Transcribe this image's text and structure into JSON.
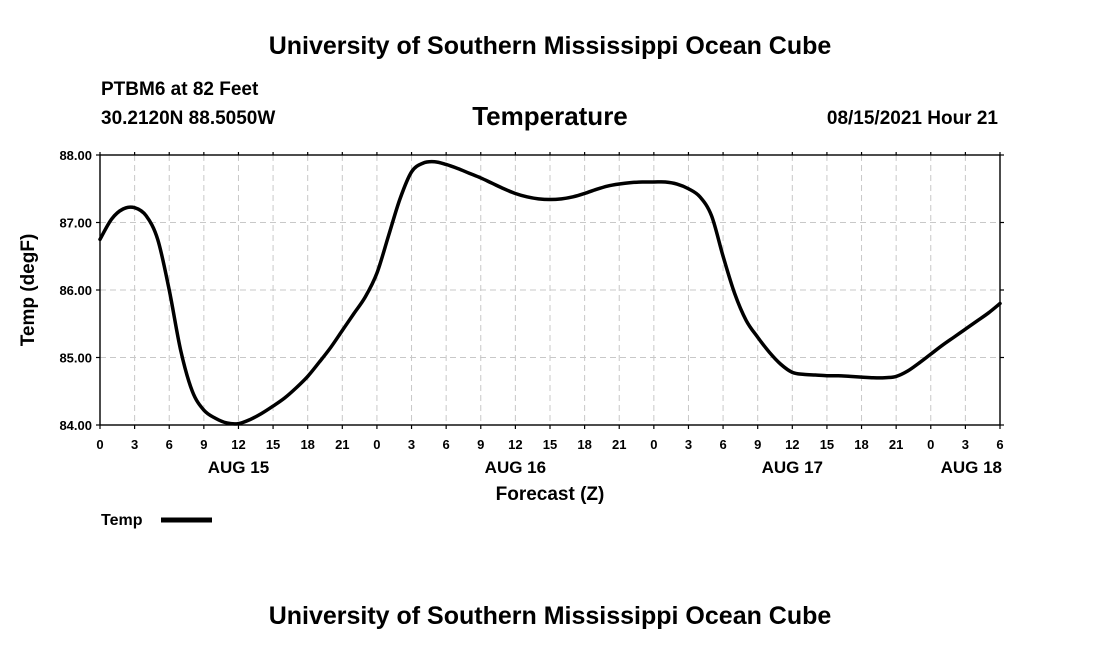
{
  "header": {
    "top_title": "University of Southern Mississippi Ocean Cube",
    "station": "PTBM6 at 82 Feet",
    "coords": "30.2120N  88.5050W",
    "variable": "Temperature",
    "datetime": "08/15/2021 Hour 21"
  },
  "footer": {
    "bottom_title": "University of Southern Mississippi Ocean Cube"
  },
  "legend": {
    "label": "Temp"
  },
  "chart_data": {
    "type": "line",
    "title": "Temperature",
    "xlabel": "Forecast (Z)",
    "ylabel": "Temp (degF)",
    "xlim": [
      0,
      78
    ],
    "ylim": [
      84.0,
      88.0
    ],
    "x_ticks": [
      0,
      3,
      6,
      9,
      12,
      15,
      18,
      21,
      24,
      27,
      30,
      33,
      36,
      39,
      42,
      45,
      48,
      51,
      54,
      57,
      60,
      63,
      66,
      69,
      72,
      75,
      78
    ],
    "x_tick_labels": [
      "0",
      "3",
      "6",
      "9",
      "12",
      "15",
      "18",
      "21",
      "0",
      "3",
      "6",
      "9",
      "12",
      "15",
      "18",
      "21",
      "0",
      "3",
      "6",
      "9",
      "12",
      "15",
      "18",
      "21",
      "0",
      "3",
      "6"
    ],
    "y_ticks": [
      84.0,
      85.0,
      86.0,
      87.0,
      88.0
    ],
    "y_tick_labels": [
      "84.00",
      "85.00",
      "86.00",
      "87.00",
      "88.00"
    ],
    "date_labels": [
      {
        "x": 12,
        "label": "AUG 15"
      },
      {
        "x": 36,
        "label": "AUG 16"
      },
      {
        "x": 60,
        "label": "AUG 17"
      },
      {
        "x": 78,
        "label": "AUG 18"
      }
    ],
    "grid": true,
    "legend_position": "bottom-left",
    "series": [
      {
        "name": "Temp",
        "color": "#000000",
        "x": [
          0,
          1,
          2,
          3,
          4,
          5,
          6,
          7,
          8,
          9,
          10,
          11,
          12,
          13,
          14,
          15,
          16,
          17,
          18,
          19,
          20,
          21,
          22,
          23,
          24,
          25,
          26,
          27,
          28,
          29,
          30,
          31,
          32,
          33,
          34,
          35,
          36,
          37,
          38,
          39,
          40,
          41,
          42,
          43,
          44,
          45,
          46,
          47,
          48,
          49,
          50,
          51,
          52,
          53,
          54,
          55,
          56,
          57,
          58,
          59,
          60,
          61,
          62,
          63,
          64,
          65,
          66,
          67,
          68,
          69,
          70,
          71,
          72,
          73,
          74,
          75,
          76,
          77,
          78
        ],
        "values": [
          86.75,
          87.05,
          87.2,
          87.22,
          87.1,
          86.75,
          86.0,
          85.1,
          84.5,
          84.22,
          84.1,
          84.03,
          84.02,
          84.08,
          84.17,
          84.28,
          84.4,
          84.55,
          84.72,
          84.93,
          85.15,
          85.4,
          85.65,
          85.9,
          86.25,
          86.8,
          87.35,
          87.75,
          87.88,
          87.9,
          87.86,
          87.8,
          87.73,
          87.66,
          87.58,
          87.5,
          87.43,
          87.38,
          87.35,
          87.34,
          87.35,
          87.38,
          87.43,
          87.49,
          87.54,
          87.57,
          87.59,
          87.6,
          87.6,
          87.6,
          87.57,
          87.5,
          87.38,
          87.1,
          86.5,
          85.95,
          85.55,
          85.3,
          85.08,
          84.9,
          84.78,
          84.75,
          84.74,
          84.73,
          84.73,
          84.72,
          84.71,
          84.7,
          84.7,
          84.72,
          84.8,
          84.92,
          85.05,
          85.18,
          85.3,
          85.42,
          85.54,
          85.66,
          85.8
        ]
      }
    ]
  }
}
